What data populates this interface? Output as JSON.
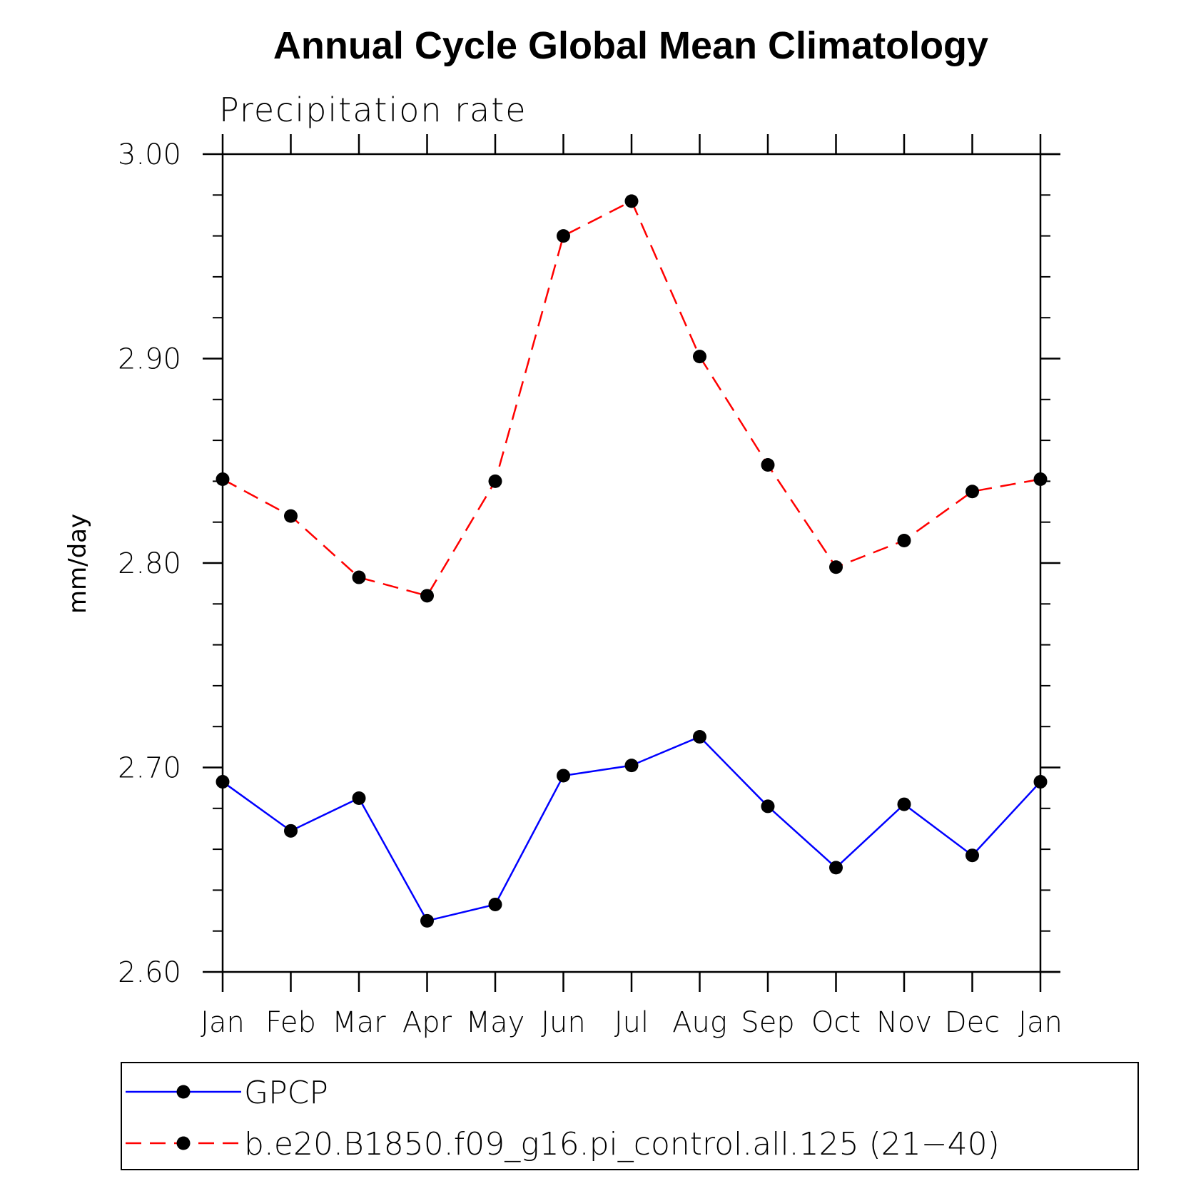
{
  "chart_data": {
    "type": "line",
    "title": "Annual Cycle Global Mean Climatology",
    "subtitle": "Precipitation rate",
    "ylabel": "mm/day",
    "xlabel": "",
    "categories": [
      "Jan",
      "Feb",
      "Mar",
      "Apr",
      "May",
      "Jun",
      "Jul",
      "Aug",
      "Sep",
      "Oct",
      "Nov",
      "Dec",
      "Jan"
    ],
    "ylim": [
      2.6,
      3.0
    ],
    "yticks": [
      "2.60",
      "2.70",
      "2.80",
      "2.90",
      "3.00"
    ],
    "ytick_values": [
      2.6,
      2.7,
      2.8,
      2.9,
      3.0
    ],
    "yminor_step": 0.02,
    "grid": false,
    "legend_position": "bottom",
    "series": [
      {
        "name": "GPCP",
        "color": "#0000ff",
        "line_style": "solid",
        "marker": "filled-circle",
        "values": [
          2.693,
          2.669,
          2.685,
          2.625,
          2.633,
          2.696,
          2.701,
          2.715,
          2.681,
          2.651,
          2.682,
          2.657,
          2.693
        ]
      },
      {
        "name": "b.e20.B1850.f09_g16.pi_control.all.125 (21−40)",
        "color": "#ff0000",
        "line_style": "dashed",
        "marker": "filled-circle",
        "values": [
          2.841,
          2.823,
          2.793,
          2.784,
          2.84,
          2.96,
          2.977,
          2.901,
          2.848,
          2.798,
          2.811,
          2.835,
          2.841
        ]
      }
    ]
  }
}
